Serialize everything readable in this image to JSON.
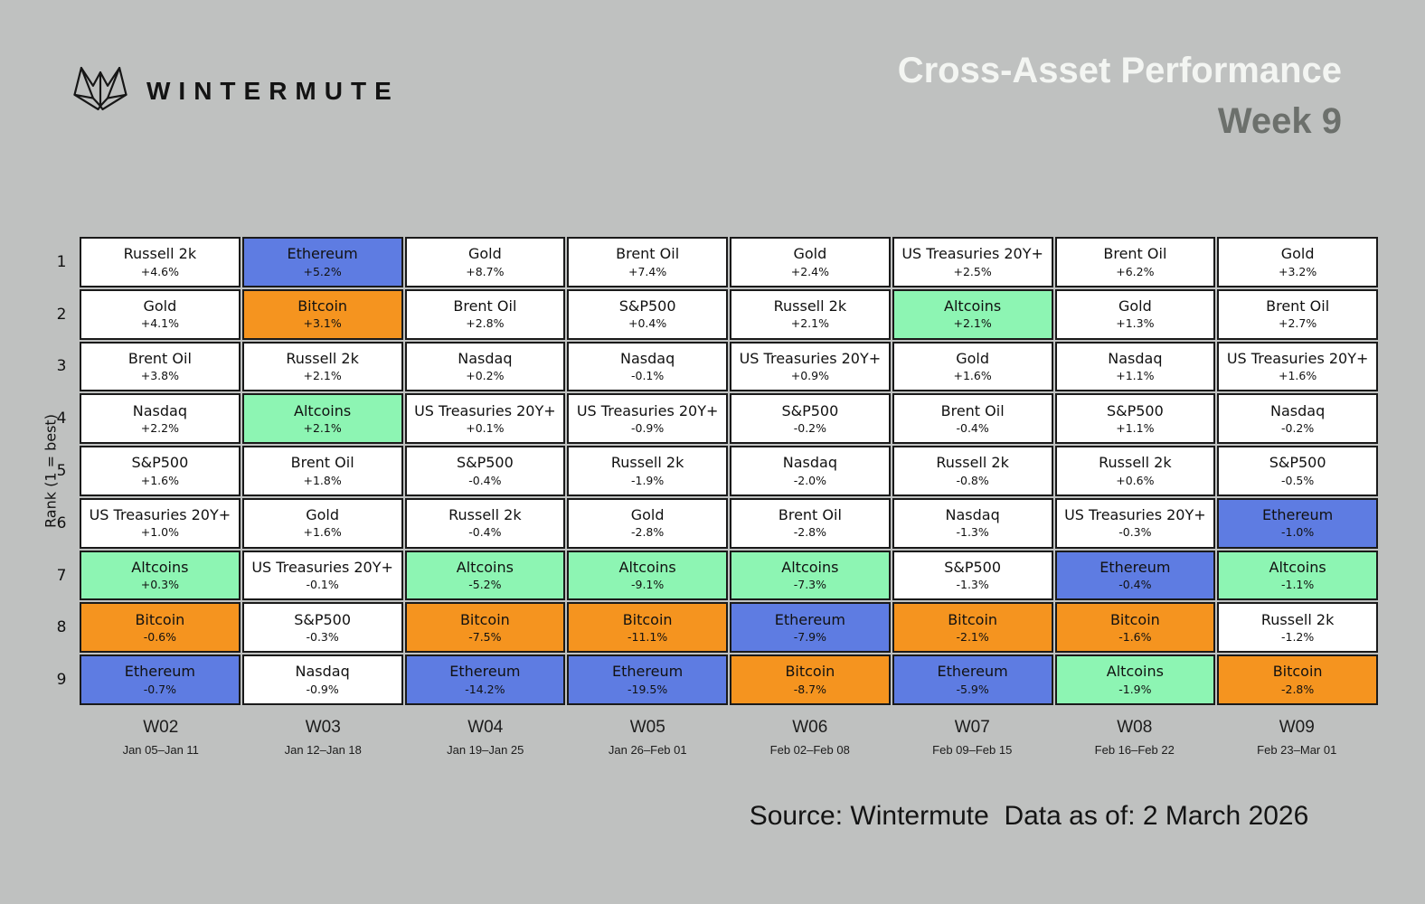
{
  "header": {
    "logo_text": "WINTERMUTE",
    "title": "Cross-Asset Performance",
    "subtitle": "Week 9"
  },
  "footer": {
    "source_label": "Source: Wintermute  Data as of: 2 March 2026"
  },
  "chart_data": {
    "type": "table",
    "title": "Cross-Asset Performance",
    "subtitle": "Week 9",
    "ylabel": "Rank (1 = best)",
    "legend_position": "none",
    "grid": true,
    "background": "#bfc1c0",
    "grid_line_color": "#1a1a1a",
    "rank_labels": [
      "1",
      "2",
      "3",
      "4",
      "5",
      "6",
      "7",
      "8",
      "9"
    ],
    "columns": [
      {
        "week": "W02",
        "dates": "Jan 05–Jan 11"
      },
      {
        "week": "W03",
        "dates": "Jan 12–Jan 18"
      },
      {
        "week": "W04",
        "dates": "Jan 19–Jan 25"
      },
      {
        "week": "W05",
        "dates": "Jan 26–Feb 01"
      },
      {
        "week": "W06",
        "dates": "Feb 02–Feb 08"
      },
      {
        "week": "W07",
        "dates": "Feb 09–Feb 15"
      },
      {
        "week": "W08",
        "dates": "Feb 16–Feb 22"
      },
      {
        "week": "W09",
        "dates": "Feb 23–Mar 01"
      }
    ],
    "asset_colors": {
      "Ethereum": "#5e7ce2",
      "Bitcoin": "#f5941f",
      "Altcoins": "#8df5b3",
      "default": "#ffffff"
    },
    "rows": [
      {
        "rank": "1",
        "cells": [
          {
            "asset": "Russell 2k",
            "change": "+4.6%"
          },
          {
            "asset": "Ethereum",
            "change": "+5.2%"
          },
          {
            "asset": "Gold",
            "change": "+8.7%"
          },
          {
            "asset": "Brent Oil",
            "change": "+7.4%"
          },
          {
            "asset": "Gold",
            "change": "+2.4%"
          },
          {
            "asset": "US Treasuries 20Y+",
            "change": "+2.5%"
          },
          {
            "asset": "Brent Oil",
            "change": "+6.2%"
          },
          {
            "asset": "Gold",
            "change": "+3.2%"
          }
        ]
      },
      {
        "rank": "2",
        "cells": [
          {
            "asset": "Gold",
            "change": "+4.1%"
          },
          {
            "asset": "Bitcoin",
            "change": "+3.1%"
          },
          {
            "asset": "Brent Oil",
            "change": "+2.8%"
          },
          {
            "asset": "S&P500",
            "change": "+0.4%"
          },
          {
            "asset": "Russell 2k",
            "change": "+2.1%"
          },
          {
            "asset": "Altcoins",
            "change": "+2.1%"
          },
          {
            "asset": "Gold",
            "change": "+1.3%"
          },
          {
            "asset": "Brent Oil",
            "change": "+2.7%"
          }
        ]
      },
      {
        "rank": "3",
        "cells": [
          {
            "asset": "Brent Oil",
            "change": "+3.8%"
          },
          {
            "asset": "Russell 2k",
            "change": "+2.1%"
          },
          {
            "asset": "Nasdaq",
            "change": "+0.2%"
          },
          {
            "asset": "Nasdaq",
            "change": "-0.1%"
          },
          {
            "asset": "US Treasuries 20Y+",
            "change": "+0.9%"
          },
          {
            "asset": "Gold",
            "change": "+1.6%"
          },
          {
            "asset": "Nasdaq",
            "change": "+1.1%"
          },
          {
            "asset": "US Treasuries 20Y+",
            "change": "+1.6%"
          }
        ]
      },
      {
        "rank": "4",
        "cells": [
          {
            "asset": "Nasdaq",
            "change": "+2.2%"
          },
          {
            "asset": "Altcoins",
            "change": "+2.1%"
          },
          {
            "asset": "US Treasuries 20Y+",
            "change": "+0.1%"
          },
          {
            "asset": "US Treasuries 20Y+",
            "change": "-0.9%"
          },
          {
            "asset": "S&P500",
            "change": "-0.2%"
          },
          {
            "asset": "Brent Oil",
            "change": "-0.4%"
          },
          {
            "asset": "S&P500",
            "change": "+1.1%"
          },
          {
            "asset": "Nasdaq",
            "change": "-0.2%"
          }
        ]
      },
      {
        "rank": "5",
        "cells": [
          {
            "asset": "S&P500",
            "change": "+1.6%"
          },
          {
            "asset": "Brent Oil",
            "change": "+1.8%"
          },
          {
            "asset": "S&P500",
            "change": "-0.4%"
          },
          {
            "asset": "Russell 2k",
            "change": "-1.9%"
          },
          {
            "asset": "Nasdaq",
            "change": "-2.0%"
          },
          {
            "asset": "Russell 2k",
            "change": "-0.8%"
          },
          {
            "asset": "Russell 2k",
            "change": "+0.6%"
          },
          {
            "asset": "S&P500",
            "change": "-0.5%"
          }
        ]
      },
      {
        "rank": "6",
        "cells": [
          {
            "asset": "US Treasuries 20Y+",
            "change": "+1.0%"
          },
          {
            "asset": "Gold",
            "change": "+1.6%"
          },
          {
            "asset": "Russell 2k",
            "change": "-0.4%"
          },
          {
            "asset": "Gold",
            "change": "-2.8%"
          },
          {
            "asset": "Brent Oil",
            "change": "-2.8%"
          },
          {
            "asset": "Nasdaq",
            "change": "-1.3%"
          },
          {
            "asset": "US Treasuries 20Y+",
            "change": "-0.3%"
          },
          {
            "asset": "Ethereum",
            "change": "-1.0%"
          }
        ]
      },
      {
        "rank": "7",
        "cells": [
          {
            "asset": "Altcoins",
            "change": "+0.3%"
          },
          {
            "asset": "US Treasuries 20Y+",
            "change": "-0.1%"
          },
          {
            "asset": "Altcoins",
            "change": "-5.2%"
          },
          {
            "asset": "Altcoins",
            "change": "-9.1%"
          },
          {
            "asset": "Altcoins",
            "change": "-7.3%"
          },
          {
            "asset": "S&P500",
            "change": "-1.3%"
          },
          {
            "asset": "Ethereum",
            "change": "-0.4%"
          },
          {
            "asset": "Altcoins",
            "change": "-1.1%"
          }
        ]
      },
      {
        "rank": "8",
        "cells": [
          {
            "asset": "Bitcoin",
            "change": "-0.6%"
          },
          {
            "asset": "S&P500",
            "change": "-0.3%"
          },
          {
            "asset": "Bitcoin",
            "change": "-7.5%"
          },
          {
            "asset": "Bitcoin",
            "change": "-11.1%"
          },
          {
            "asset": "Ethereum",
            "change": "-7.9%"
          },
          {
            "asset": "Bitcoin",
            "change": "-2.1%"
          },
          {
            "asset": "Bitcoin",
            "change": "-1.6%"
          },
          {
            "asset": "Russell 2k",
            "change": "-1.2%"
          }
        ]
      },
      {
        "rank": "9",
        "cells": [
          {
            "asset": "Ethereum",
            "change": "-0.7%"
          },
          {
            "asset": "Nasdaq",
            "change": "-0.9%"
          },
          {
            "asset": "Ethereum",
            "change": "-14.2%"
          },
          {
            "asset": "Ethereum",
            "change": "-19.5%"
          },
          {
            "asset": "Bitcoin",
            "change": "-8.7%"
          },
          {
            "asset": "Ethereum",
            "change": "-5.9%"
          },
          {
            "asset": "Altcoins",
            "change": "-1.9%"
          },
          {
            "asset": "Bitcoin",
            "change": "-2.8%"
          }
        ]
      }
    ]
  }
}
